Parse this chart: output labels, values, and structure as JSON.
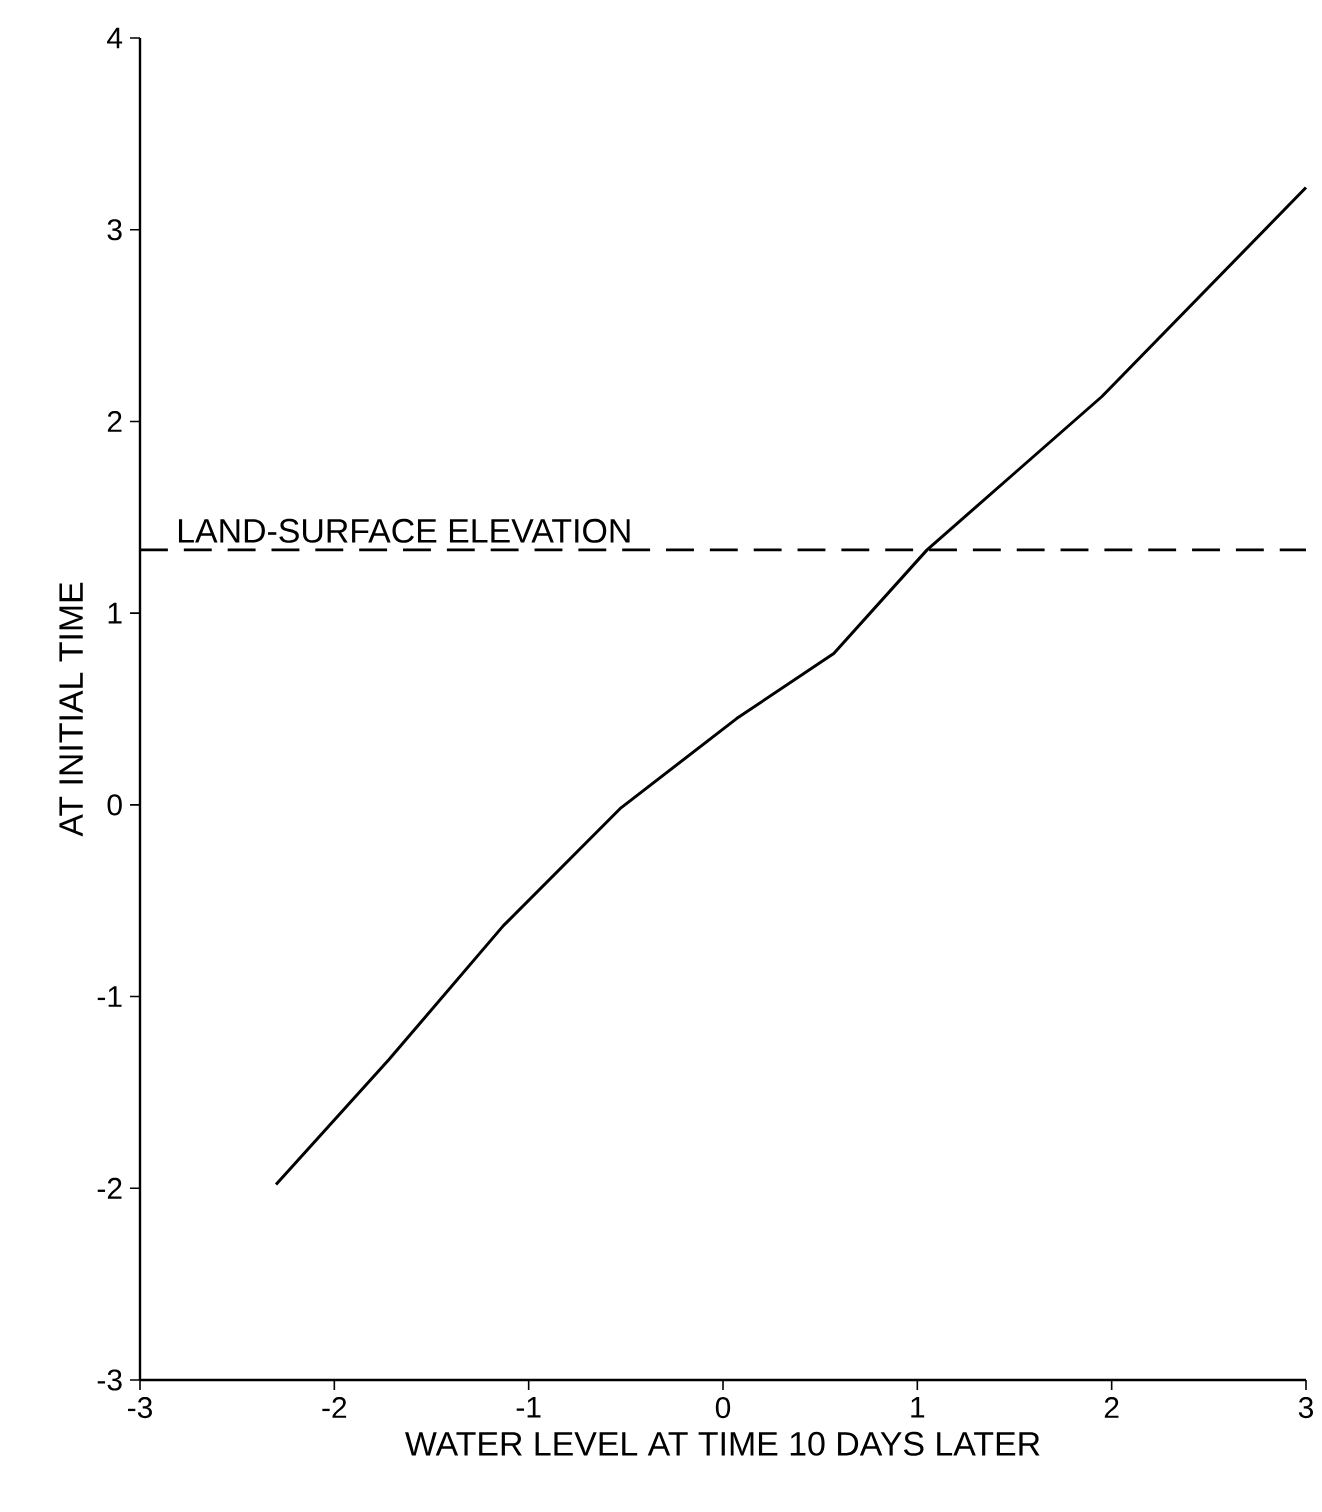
{
  "chart_data": {
    "type": "line",
    "xlabel": "WATER LEVEL AT TIME 10 DAYS LATER",
    "ylabel": "AT INITIAL TIME",
    "xlim": [
      -3,
      3
    ],
    "ylim": [
      -3,
      4
    ],
    "xticks": [
      -3,
      -2,
      -1,
      0,
      1,
      2,
      3
    ],
    "yticks": [
      -3,
      -2,
      -1,
      0,
      1,
      2,
      3,
      4
    ],
    "series": [
      {
        "color": "#000000",
        "x": [
          -2.3,
          -1.72,
          -1.13,
          -0.53,
          0.07,
          0.57,
          1.05,
          1.95,
          3.0
        ],
        "values": [
          -1.98,
          -1.33,
          -0.63,
          -0.02,
          0.45,
          0.79,
          1.33,
          2.13,
          3.22
        ]
      }
    ],
    "ref_lines": [
      {
        "axis": "y",
        "value": 1.33,
        "label": "LAND-SURFACE ELEVATION",
        "line_style": "dashed"
      }
    ],
    "grid": false,
    "marker": "none",
    "line_style": "solid"
  }
}
